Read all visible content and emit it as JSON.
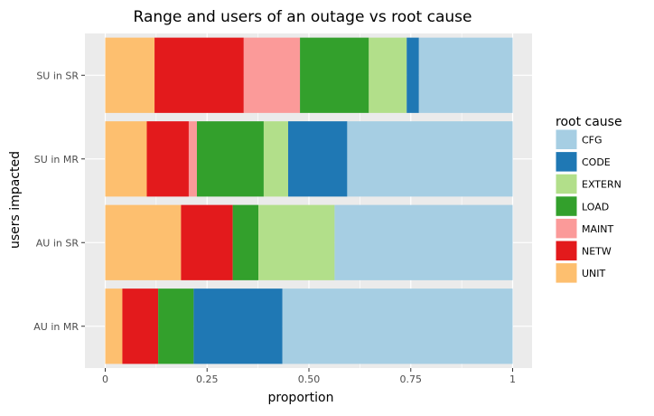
{
  "chart_data": {
    "type": "bar",
    "orientation": "horizontal",
    "stacked": "proportion",
    "title": "Range and users of an outage vs root cause",
    "xlabel": "proportion",
    "ylabel": "users impacted",
    "xlim": [
      0,
      1
    ],
    "xticks": [
      0,
      0.25,
      0.5,
      0.75,
      1
    ],
    "xtick_labels": [
      "0",
      "0.25",
      "0.50",
      "0.75",
      "1"
    ],
    "grid": true,
    "legend": {
      "title": "root cause",
      "position": "right",
      "entries": [
        "CFG",
        "CODE",
        "EXTERN",
        "LOAD",
        "MAINT",
        "NETW",
        "UNIT"
      ]
    },
    "stack_order": [
      "UNIT",
      "NETW",
      "MAINT",
      "LOAD",
      "EXTERN",
      "CODE",
      "CFG"
    ],
    "categories": [
      "SU in SR",
      "SU in MR",
      "AU in SR",
      "AU in MR"
    ],
    "series": [
      {
        "name": "CFG",
        "color": "#A6CEE3",
        "values": [
          0.23,
          0.406,
          0.437,
          0.565
        ]
      },
      {
        "name": "CODE",
        "color": "#1F78B4",
        "values": [
          0.03,
          0.145,
          0.0,
          0.218
        ]
      },
      {
        "name": "EXTERN",
        "color": "#B2DF8A",
        "values": [
          0.093,
          0.06,
          0.187,
          0.0
        ]
      },
      {
        "name": "LOAD",
        "color": "#33A02C",
        "values": [
          0.169,
          0.164,
          0.063,
          0.087
        ]
      },
      {
        "name": "MAINT",
        "color": "#FB9A99",
        "values": [
          0.138,
          0.02,
          0.0,
          0.0
        ]
      },
      {
        "name": "NETW",
        "color": "#E31A1C",
        "values": [
          0.219,
          0.103,
          0.127,
          0.088
        ]
      },
      {
        "name": "UNIT",
        "color": "#FDBF6F",
        "values": [
          0.121,
          0.102,
          0.186,
          0.042
        ]
      }
    ]
  }
}
